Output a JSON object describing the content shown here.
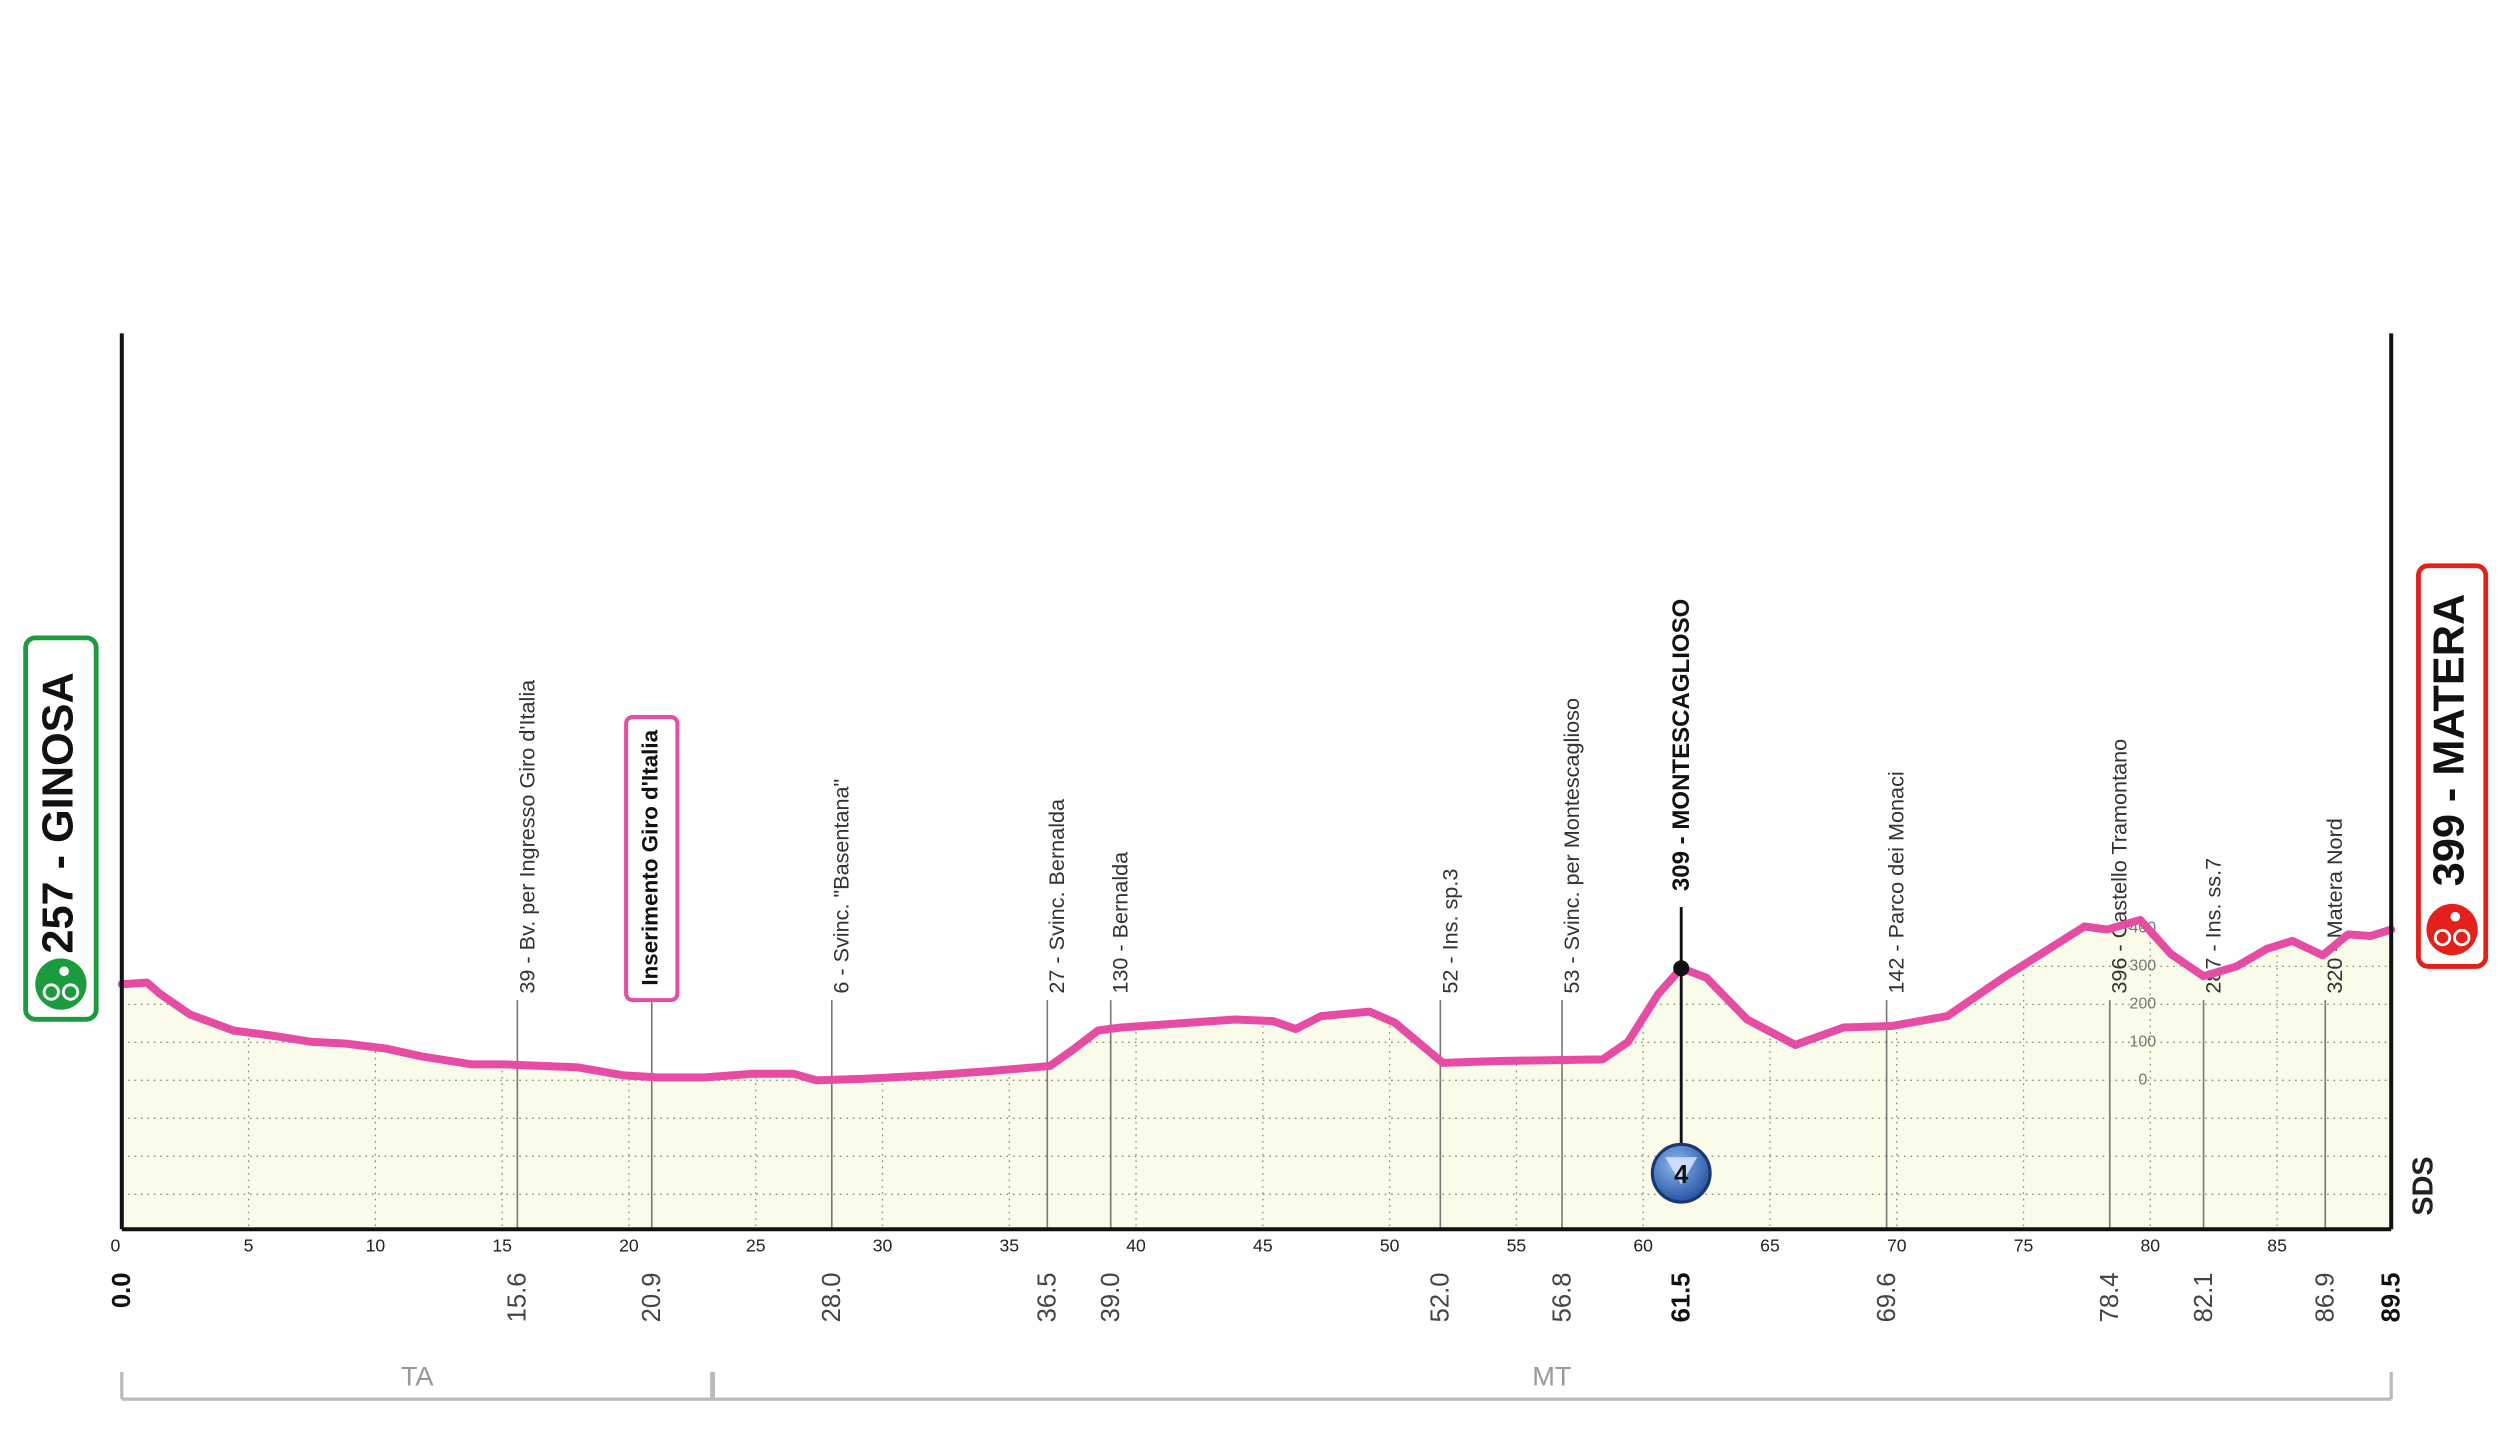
{
  "chart_data": {
    "type": "line",
    "start": {
      "km": {
        "value": 0,
        "label": "0.0"
      },
      "label": "257 - GINOSA",
      "color": "#1a9c3e"
    },
    "finish": {
      "km": 89.5,
      "label": "399 - MATERA",
      "color": "#e3201b"
    },
    "profile": {
      "color": "#e64ca3",
      "fill": "#fbfbea",
      "km": [
        0,
        1.0,
        1.5,
        2.7,
        3.4,
        4.4,
        5.9,
        7.5,
        8.8,
        10.4,
        11.8,
        13.8,
        15.1,
        18.0,
        19.8,
        21.1,
        23.0,
        24.9,
        26.5,
        27.4,
        29.3,
        31.9,
        34.4,
        36.6,
        37.5,
        38.5,
        39.4,
        41.3,
        43.9,
        45.4,
        46.3,
        47.3,
        49.2,
        50.2,
        52.1,
        54.3,
        58.4,
        59.4,
        60.6,
        61.5,
        62.5,
        64.1,
        66.0,
        67.9,
        69.8,
        72.0,
        74.2,
        76.1,
        77.4,
        78.3,
        79.6,
        80.8,
        82.1,
        83.4,
        84.6,
        85.6,
        86.8,
        87.8,
        88.7,
        89.5
      ],
      "altitude": [
        253,
        257,
        228,
        173,
        156,
        131,
        118,
        101,
        97,
        84,
        63,
        42,
        42,
        34,
        13,
        8,
        8,
        17,
        17,
        0,
        4,
        13,
        25,
        38,
        80,
        131,
        139,
        148,
        160,
        156,
        135,
        169,
        181,
        152,
        46,
        51,
        55,
        101,
        228,
        295,
        270,
        160,
        93,
        139,
        143,
        169,
        270,
        350,
        405,
        397,
        422,
        333,
        274,
        300,
        346,
        367,
        329,
        384,
        380,
        397
      ]
    },
    "xlim": [
      0,
      89.5
    ],
    "ylim": [
      -392,
      1966
    ],
    "xticks": [
      0,
      5,
      10,
      15,
      20,
      25,
      30,
      35,
      40,
      45,
      50,
      55,
      60,
      65,
      70,
      75,
      80,
      85
    ],
    "yticks": [
      0,
      100,
      200,
      300,
      400
    ],
    "grid_y": [
      -300,
      -200,
      -100,
      0,
      100,
      200,
      300,
      400
    ],
    "grid": true,
    "waypoints": [
      {
        "km": 15.6,
        "label": "39 - Bv. per  Ingresso Giro d'Italia"
      },
      {
        "km": 20.9,
        "label": "Inserimento Giro d'Italia",
        "style": "boxed"
      },
      {
        "km": {
          "value": 28,
          "label": "28.0"
        },
        "label": "6 - Svinc. \"Basentana\""
      },
      {
        "km": 36.5,
        "label": "27 - Svinc. Bernalda"
      },
      {
        "km": {
          "value": 39,
          "label": "39.0"
        },
        "label": "130 - Bernalda"
      },
      {
        "km": {
          "value": 52,
          "label": "52.0"
        },
        "label": "52 - Ins. sp.3"
      },
      {
        "km": 56.8,
        "label": "53 - Svinc. per Montescaglioso"
      },
      {
        "km": 61.5,
        "label": "309 - MONTESCAGLIOSO",
        "style": "summit",
        "badge": "4"
      },
      {
        "km": 69.6,
        "label": "142 - Parco dei Monaci"
      },
      {
        "km": 78.4,
        "label": "396 - Castello Tramontano"
      },
      {
        "km": 82.1,
        "label": "287 - Ins. ss.7"
      },
      {
        "km": 86.9,
        "label": "320 - Matera Nord"
      }
    ],
    "zones": [
      {
        "label": "TA",
        "from": 0,
        "to": 23.3
      },
      {
        "label": "MT",
        "from": 23.3,
        "to": 89.5
      }
    ],
    "logo": "SDS"
  }
}
